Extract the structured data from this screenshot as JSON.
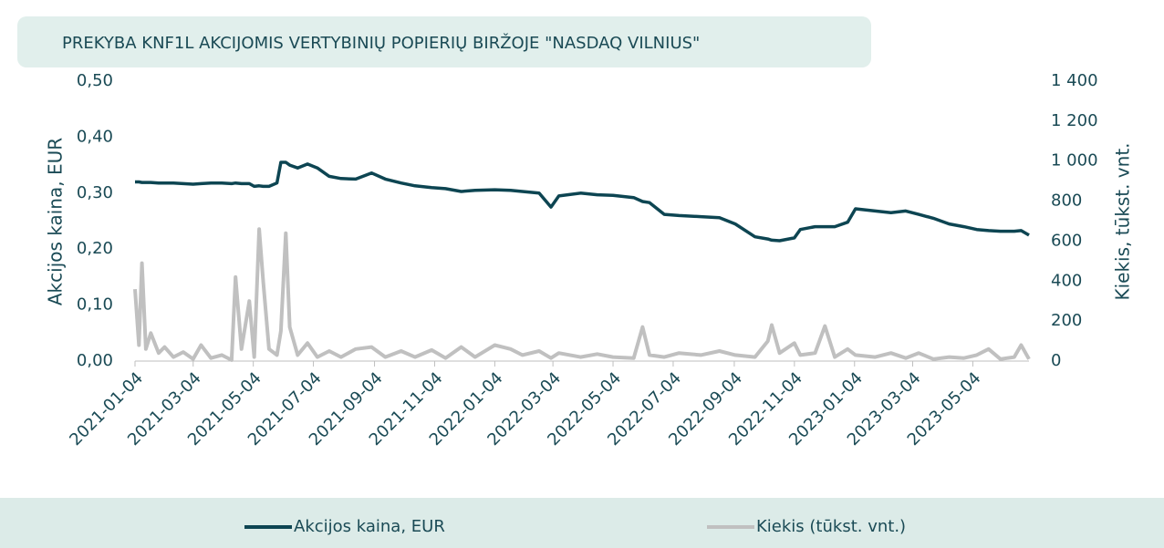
{
  "chart_data": {
    "type": "line",
    "title": "PREKYBA KNF1L AKCIJOMIS VERTYBINIŲ POPIERIŲ BIRŽOJE \"NASDAQ VILNIUS\"",
    "y_label": "Akcijos kaina, EUR",
    "y2_label": "Kiekis, tūkst. vnt.",
    "x": [
      "2021-01-04",
      "2021-01-08",
      "2021-01-11",
      "2021-01-15",
      "2021-01-20",
      "2021-01-28",
      "2021-02-03",
      "2021-02-12",
      "2021-02-22",
      "2021-03-04",
      "2021-03-12",
      "2021-03-22",
      "2021-04-02",
      "2021-04-12",
      "2021-04-16",
      "2021-04-22",
      "2021-04-30",
      "2021-05-05",
      "2021-05-10",
      "2021-05-14",
      "2021-05-20",
      "2021-05-28",
      "2021-06-01",
      "2021-06-06",
      "2021-06-10",
      "2021-06-18",
      "2021-06-28",
      "2021-07-08",
      "2021-07-20",
      "2021-08-01",
      "2021-08-16",
      "2021-09-01",
      "2021-09-15",
      "2021-10-01",
      "2021-10-15",
      "2021-11-01",
      "2021-11-15",
      "2021-12-01",
      "2021-12-15",
      "2022-01-04",
      "2022-01-20",
      "2022-02-01",
      "2022-02-18",
      "2022-03-02",
      "2022-03-10",
      "2022-04-01",
      "2022-04-18",
      "2022-05-04",
      "2022-05-25",
      "2022-06-03",
      "2022-06-10",
      "2022-06-25",
      "2022-07-10",
      "2022-08-01",
      "2022-08-20",
      "2022-09-05",
      "2022-09-25",
      "2022-10-08",
      "2022-10-12",
      "2022-10-20",
      "2022-11-04",
      "2022-11-10",
      "2022-11-25",
      "2022-12-05",
      "2022-12-15",
      "2022-12-28",
      "2023-01-05",
      "2023-01-25",
      "2023-02-10",
      "2023-02-25",
      "2023-03-10",
      "2023-03-25",
      "2023-04-10",
      "2023-04-25",
      "2023-05-08",
      "2023-05-20",
      "2023-06-01",
      "2023-06-15",
      "2023-06-22",
      "2023-06-30"
    ],
    "series": [
      {
        "name": "Akcijos kaina, EUR",
        "color": "#0d4552",
        "axis": "y",
        "values": [
          0.32,
          0.32,
          0.319,
          0.319,
          0.319,
          0.318,
          0.318,
          0.318,
          0.317,
          0.316,
          0.317,
          0.318,
          0.318,
          0.317,
          0.318,
          0.317,
          0.317,
          0.312,
          0.313,
          0.312,
          0.312,
          0.318,
          0.355,
          0.355,
          0.35,
          0.345,
          0.352,
          0.345,
          0.33,
          0.326,
          0.325,
          0.336,
          0.325,
          0.318,
          0.313,
          0.31,
          0.308,
          0.303,
          0.305,
          0.306,
          0.305,
          0.303,
          0.3,
          0.275,
          0.295,
          0.3,
          0.297,
          0.296,
          0.292,
          0.285,
          0.283,
          0.262,
          0.26,
          0.258,
          0.256,
          0.245,
          0.222,
          0.218,
          0.216,
          0.215,
          0.22,
          0.235,
          0.24,
          0.24,
          0.24,
          0.248,
          0.272,
          0.268,
          0.265,
          0.268,
          0.262,
          0.255,
          0.245,
          0.24,
          0.235,
          0.233,
          0.232,
          0.232,
          0.233,
          0.225
        ]
      },
      {
        "name": "Kiekis (tūkst. vnt.)",
        "color": "#c0c0c0",
        "axis": "y2",
        "values": [
          360,
          80,
          490,
          60,
          140,
          40,
          70,
          20,
          45,
          10,
          80,
          15,
          30,
          5,
          420,
          60,
          300,
          20,
          660,
          400,
          60,
          30,
          150,
          640,
          170,
          30,
          90,
          20,
          50,
          20,
          60,
          70,
          20,
          50,
          20,
          55,
          15,
          70,
          20,
          80,
          60,
          30,
          50,
          15,
          40,
          20,
          35,
          20,
          15,
          170,
          30,
          20,
          40,
          30,
          50,
          30,
          20,
          100,
          180,
          40,
          90,
          30,
          40,
          175,
          20,
          60,
          30,
          20,
          40,
          15,
          40,
          10,
          20,
          15,
          30,
          60,
          10,
          20,
          80,
          10
        ]
      }
    ],
    "xlim": [
      "2021-01-04",
      "2023-06-30"
    ],
    "xticks": [
      "2021-01-04",
      "2021-03-04",
      "2021-05-04",
      "2021-07-04",
      "2021-09-04",
      "2021-11-04",
      "2022-01-04",
      "2022-03-04",
      "2022-05-04",
      "2022-07-04",
      "2022-09-04",
      "2022-11-04",
      "2023-01-04",
      "2023-03-04",
      "2023-05-04"
    ],
    "ylim": [
      0,
      0.5
    ],
    "yticks": [
      {
        "value": 0,
        "label": "0,00"
      },
      {
        "value": 0.1,
        "label": "0,10"
      },
      {
        "value": 0.2,
        "label": "0,20"
      },
      {
        "value": 0.3,
        "label": "0,30"
      },
      {
        "value": 0.4,
        "label": "0,40"
      },
      {
        "value": 0.5,
        "label": "0,50"
      }
    ],
    "y2lim": [
      0,
      1400
    ],
    "y2ticks": [
      0,
      200,
      400,
      600,
      800,
      {
        "value": 1000,
        "label": "1 000"
      },
      {
        "value": 1200,
        "label": "1 200"
      },
      {
        "value": 1400,
        "label": "1 400"
      }
    ],
    "legend": "bottom"
  }
}
